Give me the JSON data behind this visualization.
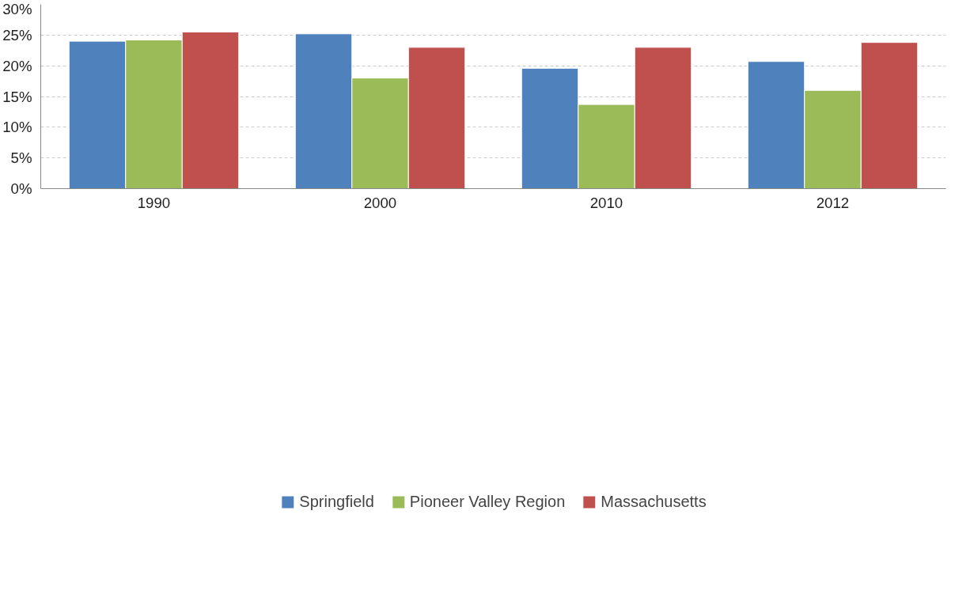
{
  "chart_data": {
    "type": "bar",
    "categories": [
      "1990",
      "2000",
      "2010",
      "2012"
    ],
    "series": [
      {
        "name": "Springfield",
        "color": "#4f81bd",
        "values": [
          24.0,
          25.2,
          19.6,
          20.7
        ]
      },
      {
        "name": "Pioneer Valley Region",
        "color": "#9bbb59",
        "values": [
          24.2,
          18.0,
          13.7,
          16.0
        ]
      },
      {
        "name": "Massachusetts",
        "color": "#c0504d",
        "values": [
          25.5,
          23.0,
          23.0,
          23.8
        ]
      }
    ],
    "ylim": [
      0,
      30
    ],
    "yticks": [
      {
        "value": 0,
        "label": "0%"
      },
      {
        "value": 5,
        "label": "5%"
      },
      {
        "value": 10,
        "label": "10%"
      },
      {
        "value": 15,
        "label": "15%"
      },
      {
        "value": 20,
        "label": "20%"
      },
      {
        "value": 25,
        "label": "25%"
      },
      {
        "value": 30,
        "label": "30%"
      }
    ],
    "grid": "y",
    "legend": "bottom"
  }
}
